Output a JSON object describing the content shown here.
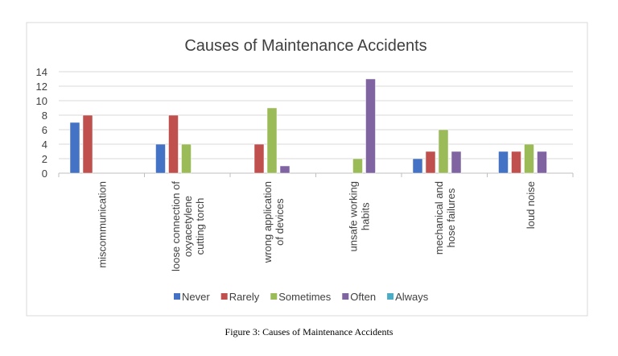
{
  "chart_data": {
    "type": "bar",
    "title": "Causes of Maintenance Accidents",
    "categories": [
      [
        "miscommunication"
      ],
      [
        "loose connection of",
        "oxyacetylene",
        "cutting torch"
      ],
      [
        "wrong application",
        "of devices"
      ],
      [
        "unsafe working",
        "habits"
      ],
      [
        "mechanical and",
        "hose failures"
      ],
      [
        "loud noise"
      ]
    ],
    "series": [
      {
        "name": "Never",
        "color": "#4472C4",
        "values": [
          7,
          4,
          0,
          0,
          2,
          3
        ]
      },
      {
        "name": "Rarely",
        "color": "#C0504D",
        "values": [
          8,
          8,
          4,
          0,
          3,
          3
        ]
      },
      {
        "name": "Sometimes",
        "color": "#9BBB59",
        "values": [
          0,
          4,
          9,
          2,
          6,
          4
        ]
      },
      {
        "name": "Often",
        "color": "#8064A2",
        "values": [
          0,
          0,
          1,
          13,
          3,
          3
        ]
      },
      {
        "name": "Always",
        "color": "#4BACC6",
        "values": [
          0,
          0,
          0,
          0,
          0,
          0
        ]
      }
    ],
    "ylim": [
      0,
      14
    ],
    "yticks": [
      0,
      2,
      4,
      6,
      8,
      10,
      12,
      14
    ],
    "grid": true,
    "legend": "bottom",
    "xlabel": "",
    "ylabel": ""
  },
  "caption": "Figure 3: Causes of Maintenance Accidents"
}
